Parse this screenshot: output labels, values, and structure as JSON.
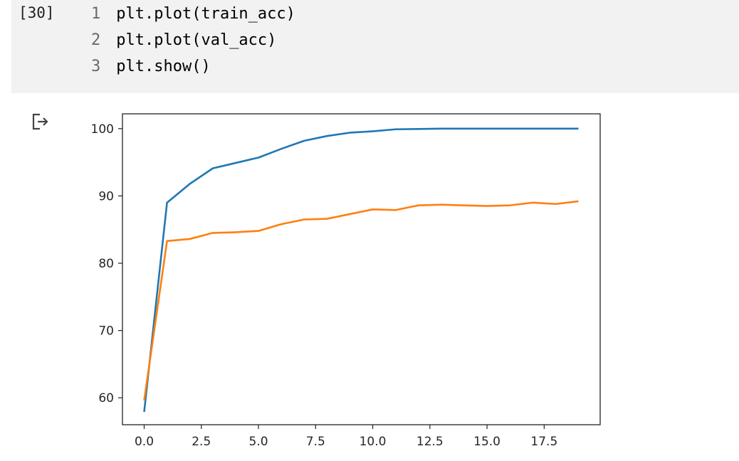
{
  "cell": {
    "execution_count": "[30]",
    "lines": [
      {
        "number": "1",
        "code": "plt.plot(train_acc)"
      },
      {
        "number": "2",
        "code": "plt.plot(val_acc)"
      },
      {
        "number": "3",
        "code": "plt.show()"
      }
    ]
  },
  "output": {
    "icon": "output-arrow-icon"
  },
  "chart_data": {
    "type": "line",
    "title": "",
    "xlabel": "",
    "ylabel": "",
    "xlim": [
      -0.95,
      19.95
    ],
    "ylim": [
      56.0,
      102.2
    ],
    "xticks": [
      0.0,
      2.5,
      5.0,
      7.5,
      10.0,
      12.5,
      15.0,
      17.5
    ],
    "xtick_labels": [
      "0.0",
      "2.5",
      "5.0",
      "7.5",
      "10.0",
      "12.5",
      "15.0",
      "17.5"
    ],
    "yticks": [
      60,
      70,
      80,
      90,
      100
    ],
    "ytick_labels": [
      "60",
      "70",
      "80",
      "90",
      "100"
    ],
    "grid": false,
    "legend": "none",
    "x": [
      0,
      1,
      2,
      3,
      4,
      5,
      6,
      7,
      8,
      9,
      10,
      11,
      12,
      13,
      14,
      15,
      16,
      17,
      18,
      19
    ],
    "series": [
      {
        "color": "#1f77b4",
        "values": [
          57.9,
          89.0,
          91.8,
          94.1,
          94.9,
          95.7,
          97.0,
          98.2,
          98.9,
          99.4,
          99.6,
          99.9,
          99.95,
          100.0,
          100.0,
          100.0,
          100.0,
          100.0,
          100.0,
          100.0
        ]
      },
      {
        "color": "#ff7f0e",
        "values": [
          59.6,
          83.3,
          83.6,
          84.5,
          84.6,
          84.8,
          85.8,
          86.5,
          86.6,
          87.3,
          88.0,
          87.9,
          88.6,
          88.7,
          88.6,
          88.5,
          88.6,
          89.0,
          88.8,
          89.2
        ]
      }
    ]
  }
}
